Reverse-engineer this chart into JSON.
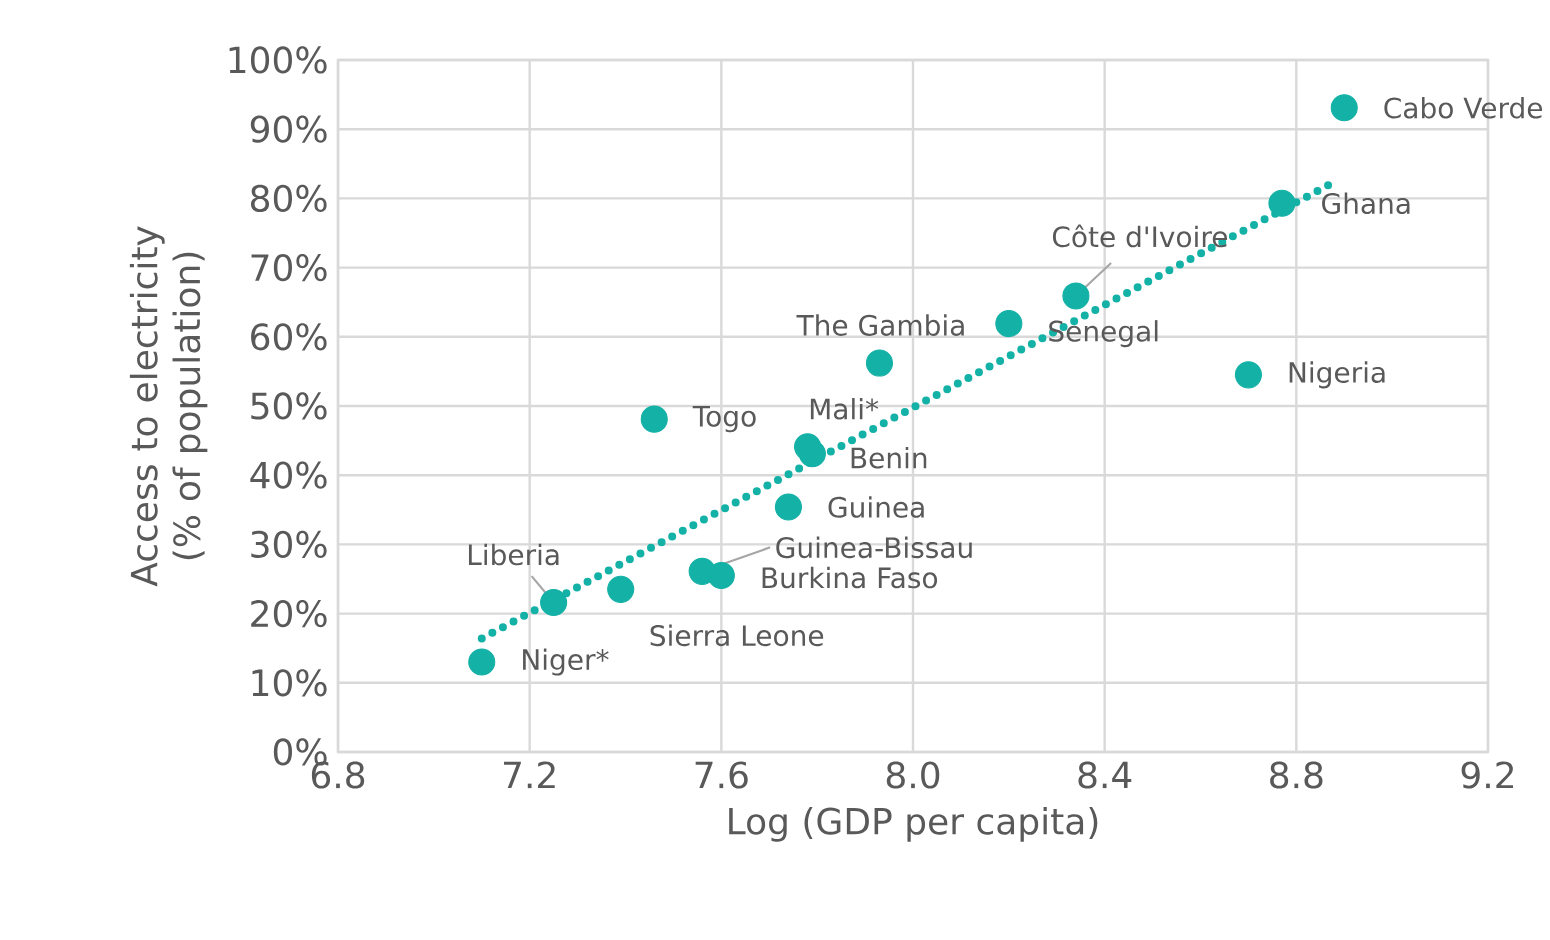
{
  "chart_data": {
    "type": "scatter",
    "xlabel": "Log (GDP per capita)",
    "ylabel": "Access to electricity (% of population)",
    "xlim": [
      6.8,
      9.2
    ],
    "xticks": [
      6.8,
      7.2,
      7.6,
      {
        "value": 8.0,
        "label": "8.0"
      },
      8.4,
      8.8,
      9.2
    ],
    "ylim": [
      0,
      100
    ],
    "yticks": [
      {
        "value": 0,
        "label": "0%"
      },
      {
        "value": 10,
        "label": "10%"
      },
      {
        "value": 20,
        "label": "20%"
      },
      {
        "value": 30,
        "label": "30%"
      },
      {
        "value": 40,
        "label": "40%"
      },
      {
        "value": 50,
        "label": "50%"
      },
      {
        "value": 60,
        "label": "60%"
      },
      {
        "value": 70,
        "label": "70%"
      },
      {
        "value": 80,
        "label": "80%"
      },
      {
        "value": 90,
        "label": "90%"
      },
      {
        "value": 100,
        "label": "100%"
      }
    ],
    "grid": true,
    "series": [
      {
        "color": "#14b1a6",
        "marker": "circle",
        "x": [
          7.1,
          7.25,
          7.39,
          7.46,
          7.56,
          7.6,
          7.74,
          7.78,
          7.79,
          7.93,
          8.2,
          8.34,
          8.7,
          8.77,
          8.9
        ],
        "values": [
          13.0,
          21.6,
          23.5,
          48.1,
          26.1,
          25.5,
          35.4,
          44.1,
          43.1,
          56.2,
          61.9,
          65.9,
          54.5,
          79.3,
          93.1
        ]
      },
      {
        "type": "line",
        "color": "#14b1a6",
        "marker": "none",
        "line_style": "dotted",
        "x": [
          7.1,
          8.88
        ],
        "values": [
          16.4,
          82.4
        ]
      }
    ],
    "annotations": [
      {
        "text": "Niger*",
        "x": 7.1,
        "y": 13.0
      },
      {
        "text": "Liberia",
        "x": 7.25,
        "y": 21.6
      },
      {
        "text": "Sierra Leone",
        "x": 7.39,
        "y": 23.5
      },
      {
        "text": "Togo",
        "x": 7.46,
        "y": 48.1
      },
      {
        "text": "Guinea-Bissau",
        "x": 7.56,
        "y": 26.1
      },
      {
        "text": "Burkina Faso",
        "x": 7.6,
        "y": 25.5
      },
      {
        "text": "Guinea",
        "x": 7.74,
        "y": 35.4
      },
      {
        "text": "Mali*",
        "x": 7.78,
        "y": 44.1
      },
      {
        "text": "Benin",
        "x": 7.79,
        "y": 43.1
      },
      {
        "text": "The Gambia",
        "x": 7.93,
        "y": 56.2
      },
      {
        "text": "Senegal",
        "x": 8.2,
        "y": 61.9
      },
      {
        "text": "Côte d'Ivoire",
        "x": 8.34,
        "y": 65.9
      },
      {
        "text": "Nigeria",
        "x": 8.7,
        "y": 54.5
      },
      {
        "text": "Ghana",
        "x": 8.77,
        "y": 79.3
      },
      {
        "text": "Cabo Verde",
        "x": 8.9,
        "y": 93.1
      }
    ]
  }
}
